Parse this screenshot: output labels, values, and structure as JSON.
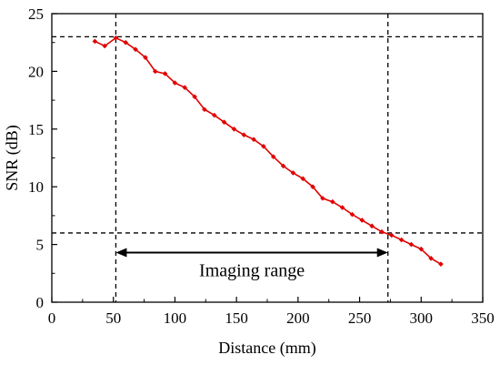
{
  "chart_data": {
    "type": "line",
    "title": "",
    "xlabel": "Distance (mm)",
    "ylabel": "SNR (dB)",
    "xlim": [
      0,
      350
    ],
    "ylim": [
      0,
      25
    ],
    "xticks": [
      0,
      50,
      100,
      150,
      200,
      250,
      300,
      350
    ],
    "yticks": [
      0,
      5,
      10,
      15,
      20,
      25
    ],
    "grid": false,
    "legend": "none",
    "series": [
      {
        "color": "#e00000",
        "x": [
          35,
          43,
          52,
          60,
          68,
          76,
          84,
          92,
          100,
          108,
          116,
          124,
          132,
          140,
          148,
          156,
          164,
          172,
          180,
          188,
          196,
          204,
          212,
          220,
          228,
          236,
          244,
          252,
          260,
          268,
          276,
          284,
          292,
          300,
          308,
          316
        ],
        "y": [
          22.6,
          22.2,
          22.9,
          22.5,
          21.9,
          21.2,
          20.0,
          19.8,
          19.0,
          18.6,
          17.8,
          16.7,
          16.2,
          15.6,
          15.0,
          14.5,
          14.1,
          13.5,
          12.6,
          11.8,
          11.2,
          10.7,
          10.0,
          9.0,
          8.7,
          8.2,
          7.6,
          7.1,
          6.6,
          6.1,
          5.8,
          5.4,
          5.0,
          4.6,
          3.8,
          3.3
        ]
      }
    ],
    "reference_lines": {
      "horizontal": [
        23.0,
        6.0
      ],
      "vertical": [
        52,
        273
      ]
    },
    "annotation": {
      "text": "Imaging range",
      "from_x": 52,
      "to_x": 273,
      "y": 4.3
    }
  }
}
